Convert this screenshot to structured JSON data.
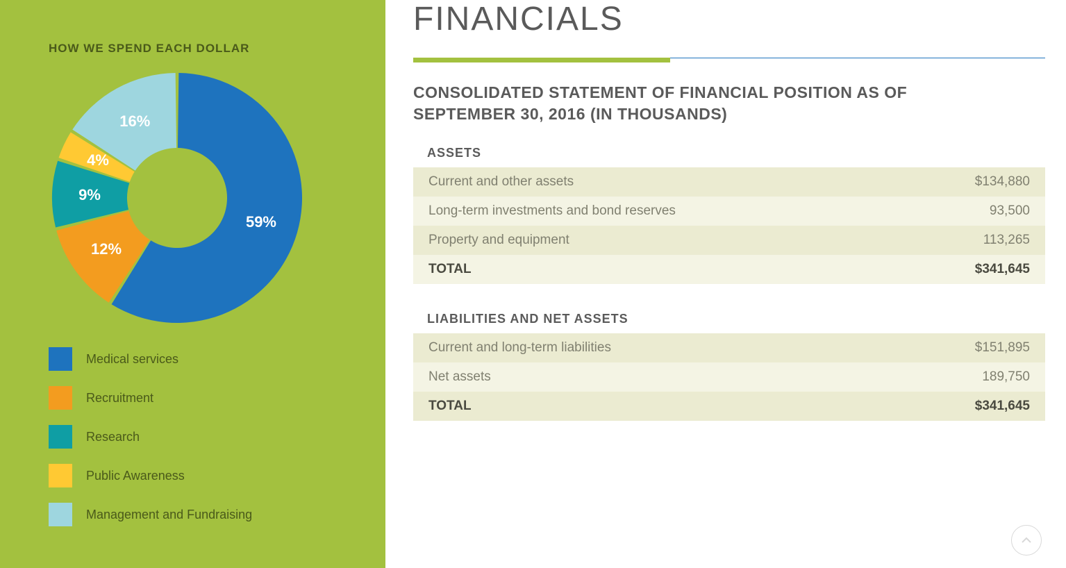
{
  "chart": {
    "title": "HOW WE SPEND EACH DOLLAR",
    "type": "donut",
    "inner_radius_pct": 40,
    "background_color": "#a3c13f",
    "slice_gap_deg": 1.5,
    "label_color": "#ffffff",
    "label_fontsize": 22,
    "slices": [
      {
        "label": "Medical services",
        "value": 59,
        "color": "#1e73be",
        "text": "59%"
      },
      {
        "label": "Recruitment",
        "value": 12,
        "color": "#f39c1f",
        "text": "12%"
      },
      {
        "label": "Research",
        "value": 9,
        "color": "#0f9ea4",
        "text": "9%"
      },
      {
        "label": "Public Awareness",
        "value": 4,
        "color": "#ffc933",
        "text": "4%"
      },
      {
        "label": "Management and Fundraising",
        "value": 16,
        "color": "#9ed6df",
        "text": "16%"
      }
    ],
    "legend_label_color": "#4a5a1a",
    "legend_label_fontsize": 18,
    "legend_swatch_size": 34
  },
  "main": {
    "title": "FINANCIALS",
    "title_color": "#5a5a5a",
    "underline_accent_color": "#a3c13f",
    "underline_rest_color": "#1e73be",
    "subtitle": "CONSOLIDATED STATEMENT OF FINANCIAL POSITION AS OF SEPTEMBER 30, 2016 (IN THOUSANDS)"
  },
  "tables": [
    {
      "title": "ASSETS",
      "rows": [
        {
          "label": "Current and other assets",
          "value": "$134,880",
          "alt": 1
        },
        {
          "label": "Long-term investments and bond reserves",
          "value": "93,500",
          "alt": 2
        },
        {
          "label": "Property and equipment",
          "value": "113,265",
          "alt": 1
        },
        {
          "label": "TOTAL",
          "value": "$341,645",
          "alt": 2,
          "total": true
        }
      ]
    },
    {
      "title": "LIABILITIES AND NET ASSETS",
      "rows": [
        {
          "label": "Current and long-term liabilities",
          "value": "$151,895",
          "alt": 1
        },
        {
          "label": "Net assets",
          "value": "189,750",
          "alt": 2
        },
        {
          "label": "TOTAL",
          "value": "$341,645",
          "alt": 1,
          "total": true
        }
      ]
    }
  ],
  "table_style": {
    "row_bg_alt1": "#ebebd1",
    "row_bg_alt2": "#f4f4e4",
    "text_color": "#808070",
    "total_text_color": "#4a4a40",
    "fontsize": 19
  }
}
